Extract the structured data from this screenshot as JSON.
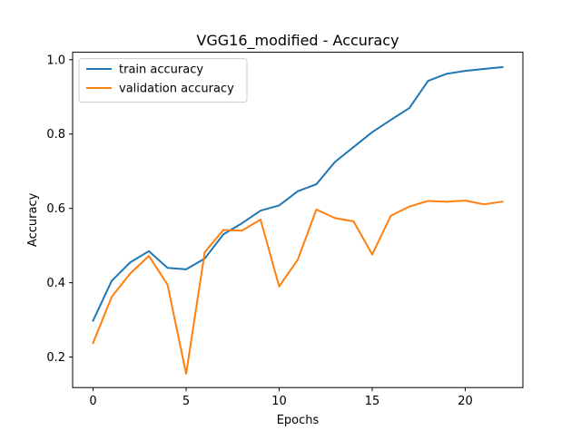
{
  "chart_data": {
    "type": "line",
    "title": "VGG16_modified - Accuracy",
    "xlabel": "Epochs",
    "ylabel": "Accuracy",
    "xlim": [
      -1.1,
      23.1
    ],
    "ylim": [
      0.118,
      1.02
    ],
    "xticks": [
      0,
      5,
      10,
      15,
      20
    ],
    "yticks": [
      0.2,
      0.4,
      0.6,
      0.8,
      1.0
    ],
    "ytick_labels": [
      "0.2",
      "0.4",
      "0.6",
      "0.8",
      "1.0"
    ],
    "grid": false,
    "legend_position": "upper-left",
    "x": [
      0,
      1,
      2,
      3,
      4,
      5,
      6,
      7,
      8,
      9,
      10,
      11,
      12,
      13,
      14,
      15,
      16,
      17,
      18,
      19,
      20,
      21,
      22
    ],
    "series": [
      {
        "name": "train accuracy",
        "color": "#1f77b4",
        "values": [
          0.298,
          0.405,
          0.455,
          0.485,
          0.44,
          0.436,
          0.465,
          0.53,
          0.56,
          0.594,
          0.608,
          0.646,
          0.665,
          0.725,
          0.765,
          0.805,
          0.838,
          0.87,
          0.943,
          0.962,
          0.97,
          0.975,
          0.98
        ]
      },
      {
        "name": "validation accuracy",
        "color": "#ff7f0e",
        "values": [
          0.238,
          0.362,
          0.425,
          0.472,
          0.395,
          0.155,
          0.482,
          0.542,
          0.54,
          0.57,
          0.39,
          0.462,
          0.597,
          0.574,
          0.565,
          0.476,
          0.58,
          0.605,
          0.62,
          0.618,
          0.621,
          0.611,
          0.618
        ]
      }
    ]
  }
}
